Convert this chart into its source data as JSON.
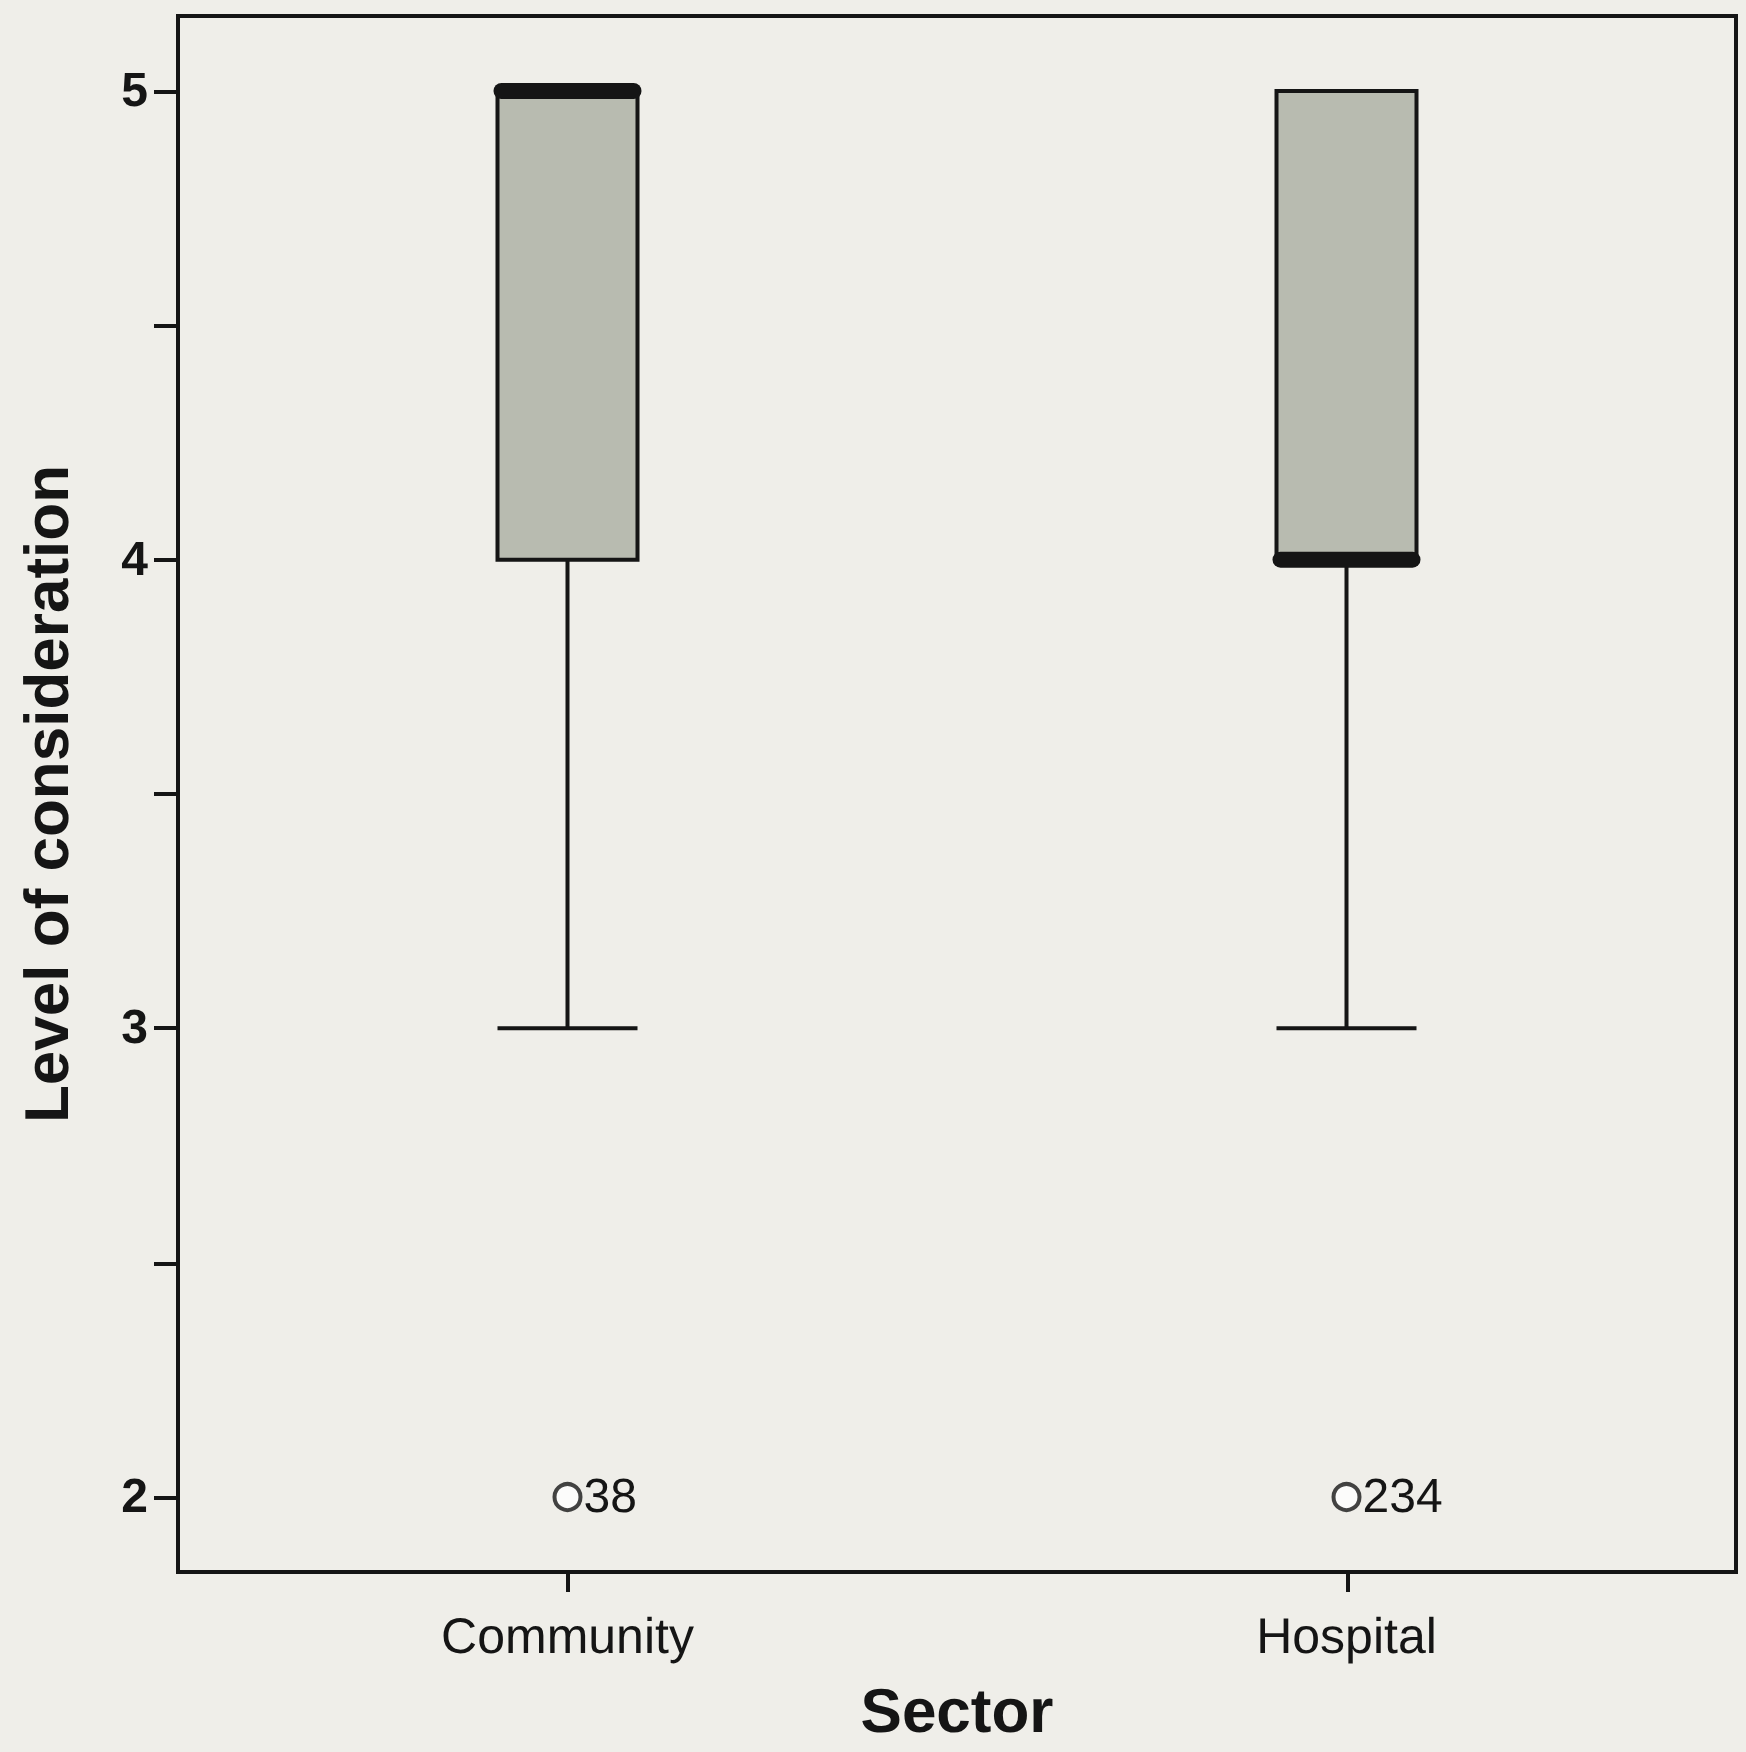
{
  "chart_data": {
    "type": "box",
    "xlabel": "Sector",
    "ylabel": "Level of consideration",
    "categories": [
      "Community",
      "Hospital"
    ],
    "boxes": [
      {
        "low": 3,
        "q1": 4,
        "median": 5,
        "q3": 5,
        "high": 5,
        "outliers": [
          2
        ]
      },
      {
        "low": 3,
        "q1": 4,
        "median": 4,
        "q3": 5,
        "high": 5,
        "outliers": [
          2
        ]
      }
    ],
    "color": "#b8bbb0",
    "ylim": [
      1.84,
      5.16
    ],
    "yticks": [
      2,
      {
        "value": 2.5,
        "label": null
      },
      3,
      {
        "value": 3.5,
        "label": null
      },
      4,
      {
        "value": 4.5,
        "label": null
      },
      5
    ],
    "annotations": [
      "38",
      "234"
    ]
  }
}
